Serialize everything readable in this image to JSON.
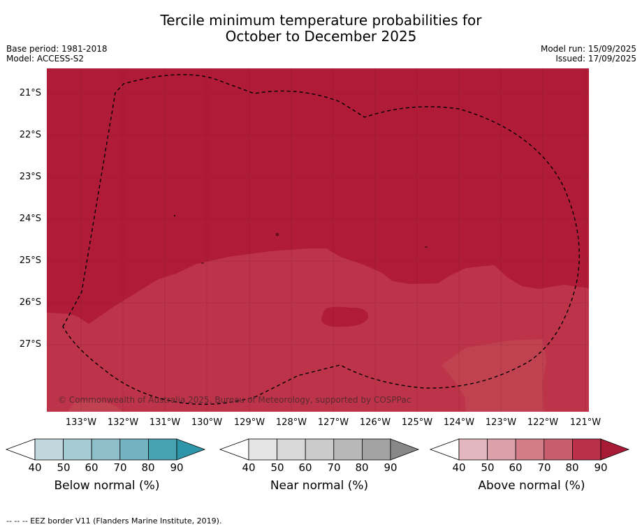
{
  "title_line1": "Tercile minimum temperature probabilities for",
  "title_line2": "October to December 2025",
  "base_period": "Base period: 1981-2018",
  "model": "Model: ACCESS-S2",
  "model_run": "Model run: 15/09/2025",
  "issued": "Issued: 17/09/2025",
  "lat_labels": [
    "21°S",
    "22°S",
    "23°S",
    "24°S",
    "25°S",
    "26°S",
    "27°S"
  ],
  "lon_labels": [
    "133°W",
    "132°W",
    "131°W",
    "130°W",
    "129°W",
    "128°W",
    "127°W",
    "126°W",
    "125°W",
    "124°W",
    "123°W",
    "122°W",
    "121°W"
  ],
  "copyright": "© Commonwealth of Australia 2025, Bureau of Meteorology, supported by COSPPac",
  "legends": [
    {
      "title": "Below normal (%)",
      "ticks": [
        "40",
        "50",
        "60",
        "70",
        "80",
        "90"
      ],
      "colors": [
        "#c0d7de",
        "#a5ccd4",
        "#8ebfc9",
        "#73b3c1",
        "#47a2b2",
        "#2f95a8"
      ]
    },
    {
      "title": "Near normal (%)",
      "ticks": [
        "40",
        "50",
        "60",
        "70",
        "80",
        "90"
      ],
      "colors": [
        "#e5e5e5",
        "#d8d8d8",
        "#cbcbcb",
        "#b8b8b8",
        "#a2a2a2",
        "#888888"
      ]
    },
    {
      "title": "Above normal (%)",
      "ticks": [
        "40",
        "50",
        "60",
        "70",
        "80",
        "90"
      ],
      "colors": [
        "#e3b7bf",
        "#dba0aa",
        "#d27d88",
        "#c85d6d",
        "#b93048",
        "#a81a35"
      ]
    }
  ],
  "footer": "--  --  -- EEZ border V11 (Flanders Marine Institute, 2019).",
  "colors": {
    "above_80_90": "#b01c38",
    "above_70_80": "#bd3349",
    "above_60_70": "#c0414f"
  }
}
